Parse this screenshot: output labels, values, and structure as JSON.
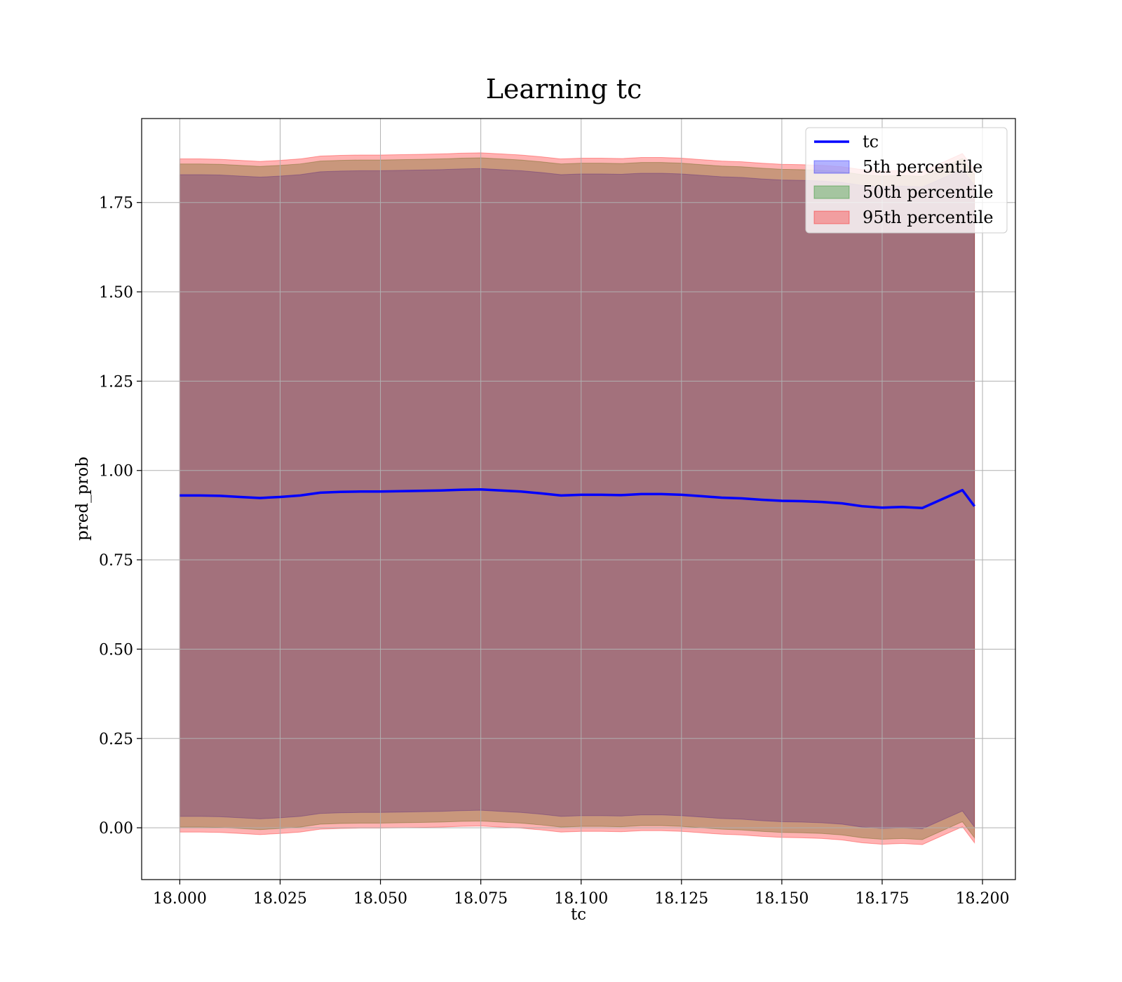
{
  "chart_data": {
    "type": "area",
    "title": "Learning tc",
    "xlabel": "tc",
    "ylabel": "pred_prob",
    "xlim": [
      17.9905,
      18.2082
    ],
    "ylim": [
      -0.145,
      1.985
    ],
    "xticks": [
      18.0,
      18.025,
      18.05,
      18.075,
      18.1,
      18.125,
      18.15,
      18.175,
      18.2
    ],
    "xtick_labels": [
      "18.000",
      "18.025",
      "18.050",
      "18.075",
      "18.100",
      "18.125",
      "18.150",
      "18.175",
      "18.200"
    ],
    "yticks": [
      0.0,
      0.25,
      0.5,
      0.75,
      1.0,
      1.25,
      1.5,
      1.75
    ],
    "ytick_labels": [
      "0.00",
      "0.25",
      "0.50",
      "0.75",
      "1.00",
      "1.25",
      "1.50",
      "1.75"
    ],
    "grid": true,
    "legend_position": "top-right",
    "x": [
      18.0,
      18.005,
      18.01,
      18.015,
      18.02,
      18.025,
      18.03,
      18.035,
      18.04,
      18.045,
      18.05,
      18.055,
      18.06,
      18.065,
      18.07,
      18.075,
      18.08,
      18.085,
      18.09,
      18.095,
      18.1,
      18.105,
      18.11,
      18.115,
      18.12,
      18.125,
      18.13,
      18.135,
      18.14,
      18.145,
      18.15,
      18.155,
      18.16,
      18.165,
      18.17,
      18.175,
      18.18,
      18.185,
      18.19,
      18.195,
      18.198
    ],
    "series": [
      {
        "name": "tc",
        "kind": "line",
        "color": "#0000ff",
        "values": [
          0.93,
          0.93,
          0.929,
          0.926,
          0.923,
          0.926,
          0.93,
          0.938,
          0.94,
          0.941,
          0.941,
          0.942,
          0.943,
          0.944,
          0.946,
          0.947,
          0.944,
          0.941,
          0.936,
          0.93,
          0.932,
          0.932,
          0.931,
          0.934,
          0.934,
          0.932,
          0.928,
          0.924,
          0.922,
          0.918,
          0.915,
          0.914,
          0.912,
          0.908,
          0.9,
          0.896,
          0.898,
          0.895,
          0.92,
          0.945,
          0.9
        ]
      },
      {
        "name": "5th percentile",
        "kind": "band",
        "color": "#0000ff",
        "opacity": 0.3,
        "lower": [
          0.032,
          0.032,
          0.031,
          0.028,
          0.025,
          0.028,
          0.032,
          0.04,
          0.042,
          0.043,
          0.043,
          0.044,
          0.045,
          0.046,
          0.048,
          0.049,
          0.046,
          0.043,
          0.038,
          0.032,
          0.034,
          0.034,
          0.033,
          0.036,
          0.036,
          0.034,
          0.03,
          0.026,
          0.024,
          0.02,
          0.017,
          0.016,
          0.014,
          0.01,
          0.002,
          -0.002,
          0.0,
          -0.003,
          0.022,
          0.047,
          0.002
        ],
        "upper": [
          1.828,
          1.828,
          1.827,
          1.824,
          1.821,
          1.824,
          1.828,
          1.836,
          1.838,
          1.839,
          1.839,
          1.84,
          1.841,
          1.842,
          1.844,
          1.845,
          1.842,
          1.839,
          1.834,
          1.828,
          1.83,
          1.83,
          1.829,
          1.832,
          1.832,
          1.83,
          1.826,
          1.822,
          1.82,
          1.816,
          1.813,
          1.812,
          1.81,
          1.806,
          1.798,
          1.794,
          1.796,
          1.793,
          1.818,
          1.843,
          1.798
        ]
      },
      {
        "name": "50th percentile",
        "kind": "band",
        "color": "#008000",
        "opacity": 0.3,
        "lower": [
          0.002,
          0.002,
          0.001,
          -0.002,
          -0.005,
          -0.002,
          0.002,
          0.01,
          0.012,
          0.013,
          0.013,
          0.014,
          0.015,
          0.016,
          0.018,
          0.019,
          0.016,
          0.013,
          0.008,
          0.002,
          0.004,
          0.004,
          0.003,
          0.006,
          0.006,
          0.004,
          0.0,
          -0.004,
          -0.006,
          -0.01,
          -0.013,
          -0.014,
          -0.016,
          -0.02,
          -0.028,
          -0.032,
          -0.03,
          -0.033,
          -0.008,
          0.017,
          -0.028
        ],
        "upper": [
          1.858,
          1.858,
          1.857,
          1.854,
          1.851,
          1.854,
          1.858,
          1.866,
          1.868,
          1.869,
          1.869,
          1.87,
          1.871,
          1.872,
          1.874,
          1.875,
          1.872,
          1.869,
          1.864,
          1.858,
          1.86,
          1.86,
          1.859,
          1.862,
          1.862,
          1.86,
          1.856,
          1.852,
          1.85,
          1.846,
          1.843,
          1.842,
          1.84,
          1.836,
          1.828,
          1.824,
          1.826,
          1.823,
          1.848,
          1.873,
          1.828
        ]
      },
      {
        "name": "95th percentile",
        "kind": "band",
        "color": "#ff0000",
        "opacity": 0.3,
        "lower": [
          -0.012,
          -0.012,
          -0.013,
          -0.016,
          -0.019,
          -0.016,
          -0.012,
          -0.004,
          -0.002,
          -0.001,
          -0.001,
          0.0,
          0.001,
          0.002,
          0.004,
          0.005,
          0.002,
          -0.001,
          -0.006,
          -0.012,
          -0.01,
          -0.01,
          -0.011,
          -0.008,
          -0.008,
          -0.01,
          -0.014,
          -0.018,
          -0.02,
          -0.024,
          -0.027,
          -0.028,
          -0.03,
          -0.034,
          -0.042,
          -0.046,
          -0.044,
          -0.047,
          -0.022,
          0.003,
          -0.042
        ],
        "upper": [
          1.872,
          1.872,
          1.871,
          1.868,
          1.865,
          1.868,
          1.872,
          1.88,
          1.882,
          1.883,
          1.883,
          1.884,
          1.885,
          1.886,
          1.888,
          1.889,
          1.886,
          1.883,
          1.878,
          1.872,
          1.874,
          1.874,
          1.873,
          1.876,
          1.876,
          1.874,
          1.87,
          1.866,
          1.864,
          1.86,
          1.857,
          1.856,
          1.854,
          1.85,
          1.842,
          1.838,
          1.84,
          1.837,
          1.862,
          1.887,
          1.842
        ]
      }
    ]
  }
}
